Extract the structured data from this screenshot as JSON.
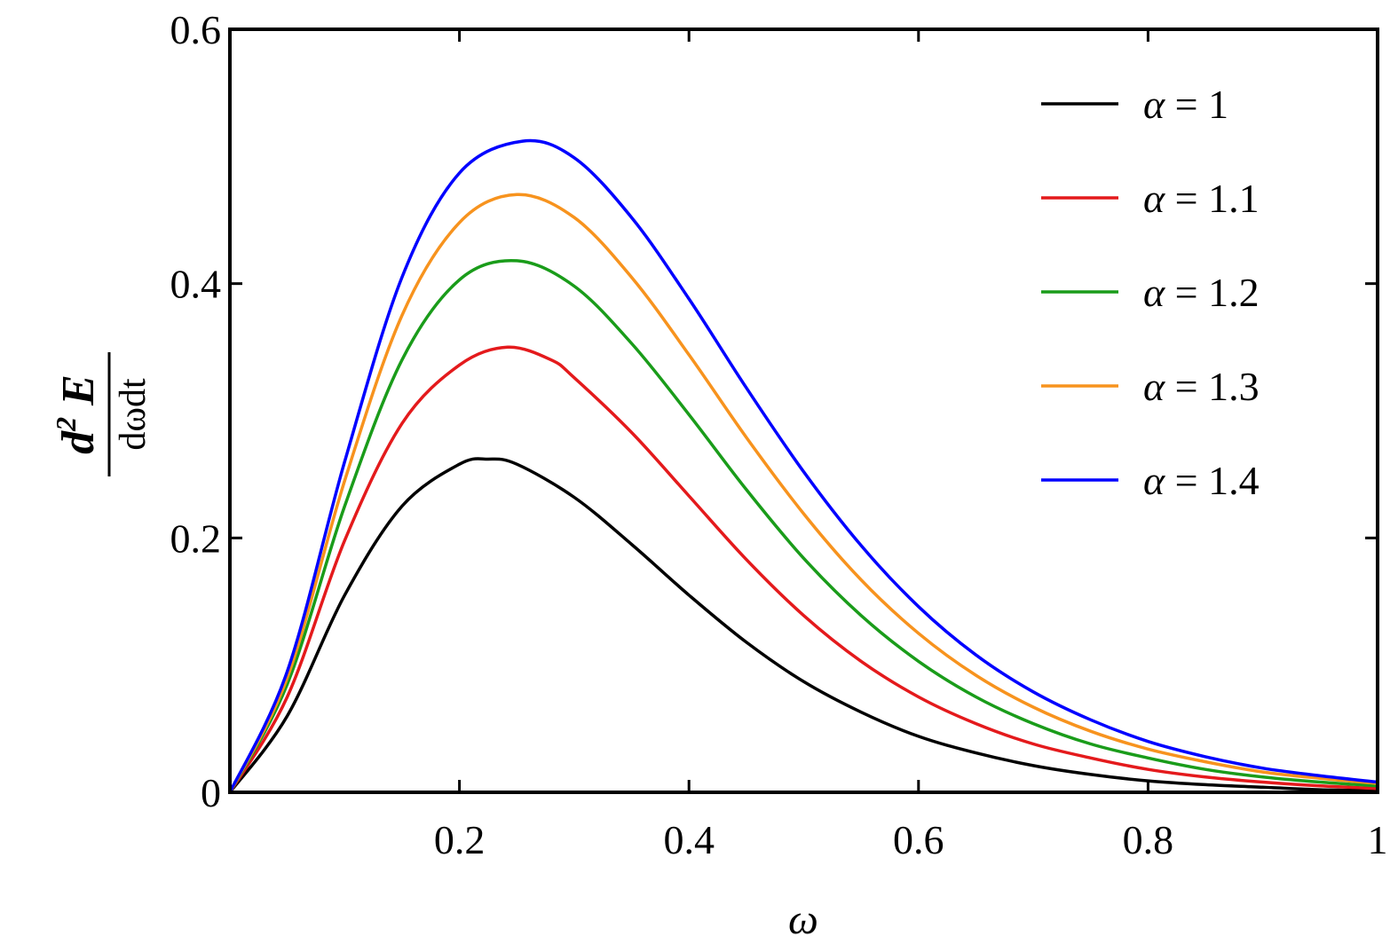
{
  "chart_data": {
    "type": "line",
    "xlabel": "ω",
    "ylabel": {
      "numerator_d": "d",
      "numerator_exp": "2",
      "numerator_E": "E",
      "denominator": "dωdt"
    },
    "xlim": [
      0,
      1
    ],
    "ylim": [
      0,
      0.6
    ],
    "xticks": [
      "0.2",
      "0.4",
      "0.6",
      "0.8",
      "1"
    ],
    "yticks": [
      "0",
      "0.2",
      "0.4",
      "0.6"
    ],
    "legend_position": "top-right",
    "series": [
      {
        "name": "α = 1",
        "color": "#000000",
        "x": [
          0,
          0.05,
          0.1,
          0.15,
          0.2,
          0.225,
          0.25,
          0.3,
          0.35,
          0.4,
          0.45,
          0.5,
          0.55,
          0.6,
          0.65,
          0.7,
          0.75,
          0.8,
          0.85,
          0.9,
          0.95,
          1.0
        ],
        "y": [
          0,
          0.06,
          0.155,
          0.225,
          0.258,
          0.262,
          0.258,
          0.232,
          0.195,
          0.155,
          0.118,
          0.087,
          0.063,
          0.044,
          0.031,
          0.021,
          0.014,
          0.009,
          0.006,
          0.004,
          0.002,
          0.0015
        ]
      },
      {
        "name": "α = 1.1",
        "color": "#e41a1c",
        "x": [
          0,
          0.05,
          0.1,
          0.15,
          0.2,
          0.242,
          0.28,
          0.3,
          0.35,
          0.4,
          0.45,
          0.5,
          0.55,
          0.6,
          0.65,
          0.7,
          0.75,
          0.8,
          0.85,
          0.9,
          0.95,
          1.0
        ],
        "y": [
          0,
          0.075,
          0.198,
          0.29,
          0.336,
          0.35,
          0.34,
          0.326,
          0.283,
          0.233,
          0.183,
          0.139,
          0.103,
          0.075,
          0.054,
          0.038,
          0.027,
          0.018,
          0.012,
          0.008,
          0.005,
          0.003
        ]
      },
      {
        "name": "α = 1.2",
        "color": "#1a9c1a",
        "x": [
          0,
          0.05,
          0.1,
          0.15,
          0.2,
          0.25,
          0.3,
          0.35,
          0.4,
          0.45,
          0.5,
          0.55,
          0.6,
          0.65,
          0.7,
          0.75,
          0.8,
          0.85,
          0.9,
          0.95,
          1.0
        ],
        "y": [
          0,
          0.085,
          0.225,
          0.34,
          0.403,
          0.418,
          0.398,
          0.353,
          0.297,
          0.238,
          0.184,
          0.139,
          0.103,
          0.075,
          0.054,
          0.038,
          0.027,
          0.018,
          0.012,
          0.008,
          0.005
        ]
      },
      {
        "name": "α = 1.3",
        "color": "#f7931e",
        "x": [
          0,
          0.05,
          0.1,
          0.15,
          0.2,
          0.25,
          0.3,
          0.35,
          0.4,
          0.45,
          0.5,
          0.55,
          0.6,
          0.65,
          0.7,
          0.75,
          0.8,
          0.85,
          0.9,
          0.95,
          1.0
        ],
        "y": [
          0,
          0.09,
          0.245,
          0.375,
          0.448,
          0.47,
          0.452,
          0.405,
          0.344,
          0.279,
          0.219,
          0.167,
          0.125,
          0.092,
          0.067,
          0.048,
          0.034,
          0.024,
          0.016,
          0.011,
          0.007
        ]
      },
      {
        "name": "α = 1.4",
        "color": "#0000ff",
        "x": [
          0,
          0.05,
          0.1,
          0.15,
          0.2,
          0.255,
          0.3,
          0.35,
          0.4,
          0.45,
          0.5,
          0.55,
          0.6,
          0.65,
          0.7,
          0.75,
          0.8,
          0.85,
          0.9,
          0.95,
          1.0
        ],
        "y": [
          0,
          0.095,
          0.26,
          0.405,
          0.487,
          0.512,
          0.499,
          0.452,
          0.388,
          0.318,
          0.252,
          0.194,
          0.146,
          0.108,
          0.079,
          0.057,
          0.04,
          0.028,
          0.019,
          0.013,
          0.008
        ]
      }
    ]
  }
}
